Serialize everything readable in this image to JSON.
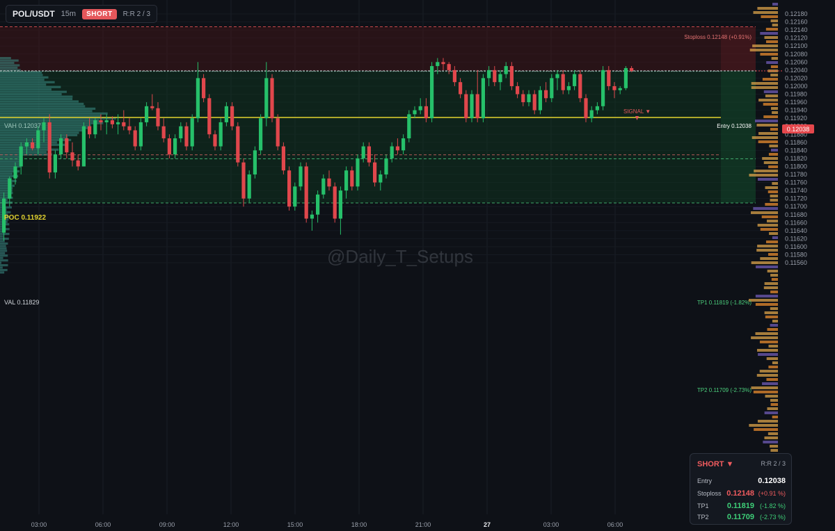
{
  "header": {
    "symbol": "POL/USDT",
    "timeframe": "15m",
    "side": "SHORT",
    "rr": "R:R 2 / 3"
  },
  "watermark": "@Daily_T_Setups",
  "colors": {
    "up": "#26c06a",
    "down": "#e0474c",
    "poc": "#e3d32f",
    "bg": "#0e1117"
  },
  "levels": {
    "stoploss": {
      "label": "Stoploss 0.12148 (+0.91%)",
      "price": 0.12148
    },
    "entry": {
      "label": "Entry 0.12038",
      "price": 0.12038,
      "tag": "0.12038"
    },
    "tp1": {
      "label": "TP1 0.11819 (-1.82%)",
      "price": 0.11819
    },
    "tp2": {
      "label": "TP2 0.11709 (-2.73%)",
      "price": 0.11709
    },
    "vah": {
      "label": "VAH  0.12037",
      "price": 0.12037
    },
    "poc": {
      "label": "POC  0.11922",
      "price": 0.11922
    },
    "val": {
      "label": "VAL  0.11829",
      "price": 0.11829
    },
    "signal": {
      "label": "SIGNAL ▼"
    }
  },
  "price_axis": [
    "0.12180",
    "0.12160",
    "0.12140",
    "0.12120",
    "0.12100",
    "0.12080",
    "0.12060",
    "0.12040",
    "0.12020",
    "0.12000",
    "0.11980",
    "0.11960",
    "0.11940",
    "0.11920",
    "0.11900",
    "0.11880",
    "0.11860",
    "0.11840",
    "0.11820",
    "0.11800",
    "0.11780",
    "0.11760",
    "0.11740",
    "0.11720",
    "0.11700",
    "0.11680",
    "0.11660",
    "0.11640",
    "0.11620",
    "0.11600",
    "0.11580",
    "0.11560"
  ],
  "time_axis": [
    "03:00",
    "06:00",
    "09:00",
    "12:00",
    "15:00",
    "18:00",
    "21:00",
    "27",
    "03:00",
    "06:00"
  ],
  "panel": {
    "side": "SHORT ▼",
    "rr": "R:R 2 / 3",
    "rows": [
      {
        "label": "Entry",
        "value": "0.12038",
        "pct": ""
      },
      {
        "label": "Stoploss",
        "value": "0.12148",
        "pct": "(+0.91 %)"
      },
      {
        "label": "TP1",
        "value": "0.11819",
        "pct": "(-1.82 %)"
      },
      {
        "label": "TP2",
        "value": "0.11709",
        "pct": "(-2.73 %)"
      }
    ]
  },
  "chart_data": {
    "type": "candlestick",
    "symbol": "POL/USDT",
    "interval": "15m",
    "ylim": [
      0.1155,
      0.12195
    ],
    "x_ticks": [
      "03:00",
      "06:00",
      "09:00",
      "12:00",
      "15:00",
      "18:00",
      "21:00",
      "27",
      "03:00",
      "06:00"
    ],
    "candles": [
      [
        0.11635,
        0.11735,
        0.11615,
        0.1172
      ],
      [
        0.1172,
        0.11775,
        0.117,
        0.1177
      ],
      [
        0.1177,
        0.1181,
        0.11755,
        0.118
      ],
      [
        0.118,
        0.1186,
        0.1178,
        0.1185
      ],
      [
        0.1185,
        0.1187,
        0.1183,
        0.1186
      ],
      [
        0.1186,
        0.1187,
        0.1184,
        0.11845
      ],
      [
        0.11845,
        0.119,
        0.1183,
        0.1189
      ],
      [
        0.1189,
        0.1192,
        0.1186,
        0.1191
      ],
      [
        0.1191,
        0.1193,
        0.1177,
        0.11785
      ],
      [
        0.11785,
        0.1184,
        0.1177,
        0.1183
      ],
      [
        0.1183,
        0.1188,
        0.1182,
        0.1187
      ],
      [
        0.1187,
        0.1188,
        0.1182,
        0.11835
      ],
      [
        0.11835,
        0.1186,
        0.118,
        0.11815
      ],
      [
        0.11815,
        0.1183,
        0.1179,
        0.118
      ],
      [
        0.118,
        0.1191,
        0.118,
        0.119
      ],
      [
        0.119,
        0.1192,
        0.1187,
        0.1188
      ],
      [
        0.1188,
        0.1192,
        0.1187,
        0.11915
      ],
      [
        0.11915,
        0.1193,
        0.1189,
        0.1191
      ],
      [
        0.1191,
        0.1193,
        0.1188,
        0.11915
      ],
      [
        0.11915,
        0.11925,
        0.11895,
        0.11905
      ],
      [
        0.11905,
        0.1193,
        0.1188,
        0.1191
      ],
      [
        0.1191,
        0.1194,
        0.1189,
        0.119
      ],
      [
        0.119,
        0.1192,
        0.1188,
        0.1189
      ],
      [
        0.1189,
        0.119,
        0.1184,
        0.1185
      ],
      [
        0.1185,
        0.1192,
        0.1184,
        0.1191
      ],
      [
        0.1191,
        0.1196,
        0.119,
        0.1195
      ],
      [
        0.1195,
        0.1198,
        0.1194,
        0.11945
      ],
      [
        0.11945,
        0.1196,
        0.1189,
        0.119
      ],
      [
        0.119,
        0.1192,
        0.1186,
        0.1187
      ],
      [
        0.1187,
        0.1188,
        0.1182,
        0.1183
      ],
      [
        0.1183,
        0.1188,
        0.1182,
        0.1187
      ],
      [
        0.1187,
        0.1191,
        0.1186,
        0.119
      ],
      [
        0.119,
        0.1191,
        0.1184,
        0.1185
      ],
      [
        0.1185,
        0.1193,
        0.1184,
        0.1192
      ],
      [
        0.1192,
        0.1206,
        0.1191,
        0.1202
      ],
      [
        0.1202,
        0.1203,
        0.1196,
        0.1197
      ],
      [
        0.1197,
        0.1198,
        0.1187,
        0.1188
      ],
      [
        0.1188,
        0.1189,
        0.1184,
        0.1185
      ],
      [
        0.1185,
        0.1192,
        0.1184,
        0.1191
      ],
      [
        0.1191,
        0.1196,
        0.119,
        0.1195
      ],
      [
        0.1195,
        0.1196,
        0.1189,
        0.119
      ],
      [
        0.119,
        0.1191,
        0.118,
        0.1181
      ],
      [
        0.1181,
        0.1182,
        0.117,
        0.1172
      ],
      [
        0.1172,
        0.1179,
        0.1171,
        0.1178
      ],
      [
        0.1178,
        0.1185,
        0.1177,
        0.1184
      ],
      [
        0.1184,
        0.1193,
        0.1183,
        0.1192
      ],
      [
        0.1192,
        0.1206,
        0.119,
        0.1202
      ],
      [
        0.1202,
        0.1203,
        0.1191,
        0.1192
      ],
      [
        0.1192,
        0.1193,
        0.1184,
        0.1185
      ],
      [
        0.1185,
        0.1186,
        0.1178,
        0.1179
      ],
      [
        0.1179,
        0.118,
        0.1169,
        0.117
      ],
      [
        0.117,
        0.1176,
        0.1169,
        0.1175
      ],
      [
        0.1175,
        0.1181,
        0.1174,
        0.118
      ],
      [
        0.118,
        0.1181,
        0.1166,
        0.1167
      ],
      [
        0.1167,
        0.1169,
        0.1164,
        0.1168
      ],
      [
        0.1168,
        0.1174,
        0.1166,
        0.1173
      ],
      [
        0.1173,
        0.1178,
        0.1172,
        0.1177
      ],
      [
        0.1177,
        0.1179,
        0.1174,
        0.1175
      ],
      [
        0.1175,
        0.1176,
        0.1166,
        0.1167
      ],
      [
        0.1167,
        0.1175,
        0.1163,
        0.1174
      ],
      [
        0.1174,
        0.118,
        0.1172,
        0.1179
      ],
      [
        0.1179,
        0.118,
        0.1174,
        0.1175
      ],
      [
        0.1175,
        0.1183,
        0.1174,
        0.1182
      ],
      [
        0.1182,
        0.1186,
        0.1181,
        0.1185
      ],
      [
        0.1185,
        0.1186,
        0.118,
        0.1181
      ],
      [
        0.1181,
        0.1183,
        0.1175,
        0.1176
      ],
      [
        0.1176,
        0.1179,
        0.1174,
        0.1178
      ],
      [
        0.1178,
        0.1183,
        0.1177,
        0.1182
      ],
      [
        0.1182,
        0.1186,
        0.1181,
        0.1185
      ],
      [
        0.1185,
        0.1187,
        0.1183,
        0.1184
      ],
      [
        0.1184,
        0.1188,
        0.1183,
        0.1187
      ],
      [
        0.1187,
        0.1194,
        0.1186,
        0.1193
      ],
      [
        0.1193,
        0.1195,
        0.1192,
        0.1194
      ],
      [
        0.1194,
        0.1197,
        0.1193,
        0.1195
      ],
      [
        0.1195,
        0.1197,
        0.1191,
        0.1192
      ],
      [
        0.1192,
        0.1206,
        0.1191,
        0.1205
      ],
      [
        0.1205,
        0.1207,
        0.1203,
        0.1206
      ],
      [
        0.1206,
        0.1207,
        0.1204,
        0.12055
      ],
      [
        0.12055,
        0.1206,
        0.1203,
        0.1204
      ],
      [
        0.1204,
        0.1205,
        0.12,
        0.1201
      ],
      [
        0.1201,
        0.1202,
        0.1197,
        0.1198
      ],
      [
        0.1198,
        0.1199,
        0.1191,
        0.1192
      ],
      [
        0.1192,
        0.1199,
        0.1191,
        0.1198
      ],
      [
        0.1198,
        0.1204,
        0.1191,
        0.1192
      ],
      [
        0.1192,
        0.1203,
        0.1191,
        0.1202
      ],
      [
        0.1202,
        0.1205,
        0.12,
        0.1204
      ],
      [
        0.1204,
        0.1205,
        0.12,
        0.1201
      ],
      [
        0.1201,
        0.1204,
        0.1199,
        0.1203
      ],
      [
        0.1203,
        0.1206,
        0.1202,
        0.1205
      ],
      [
        0.1205,
        0.1206,
        0.1199,
        0.12
      ],
      [
        0.12,
        0.1201,
        0.1197,
        0.1198
      ],
      [
        0.1198,
        0.1199,
        0.1195,
        0.1196
      ],
      [
        0.1196,
        0.1199,
        0.1195,
        0.1198
      ],
      [
        0.1198,
        0.1199,
        0.1193,
        0.1194
      ],
      [
        0.1194,
        0.12,
        0.1193,
        0.1199
      ],
      [
        0.1199,
        0.1201,
        0.1196,
        0.1197
      ],
      [
        0.1197,
        0.1203,
        0.1196,
        0.1202
      ],
      [
        0.1202,
        0.1204,
        0.1199,
        0.1203
      ],
      [
        0.1203,
        0.1204,
        0.1198,
        0.1199
      ],
      [
        0.1199,
        0.1201,
        0.1198,
        0.12
      ],
      [
        0.12,
        0.1204,
        0.1199,
        0.1203
      ],
      [
        0.1203,
        0.1204,
        0.1196,
        0.1197
      ],
      [
        0.1197,
        0.1198,
        0.1191,
        0.1192
      ],
      [
        0.1192,
        0.1195,
        0.1191,
        0.1194
      ],
      [
        0.1194,
        0.1196,
        0.1193,
        0.1195
      ],
      [
        0.1195,
        0.1205,
        0.1194,
        0.1204
      ],
      [
        0.1204,
        0.1205,
        0.1199,
        0.12
      ],
      [
        0.12,
        0.1201,
        0.1197,
        0.1199
      ],
      [
        0.1199,
        0.12,
        0.1198,
        0.11995
      ],
      [
        0.11995,
        0.1205,
        0.1199,
        0.12045
      ],
      [
        0.12045,
        0.1205,
        0.12035,
        0.12038
      ]
    ]
  }
}
